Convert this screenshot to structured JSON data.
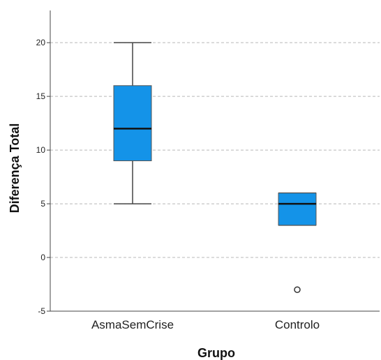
{
  "chart_data": {
    "type": "boxplot",
    "xlabel": "Grupo",
    "ylabel": "Diferença Total",
    "ylim": [
      -5,
      23
    ],
    "yticks": [
      -5,
      0,
      5,
      10,
      15,
      20
    ],
    "grid": true,
    "box_color": "#1493e8",
    "categories": [
      "AsmaSemCrise",
      "Controlo"
    ],
    "boxes": [
      {
        "category": "AsmaSemCrise",
        "whisker_low": 5,
        "q1": 9,
        "median": 12,
        "q3": 16,
        "whisker_high": 20,
        "outliers": []
      },
      {
        "category": "Controlo",
        "whisker_low": 3,
        "q1": 3,
        "median": 5,
        "q3": 6,
        "whisker_high": 6,
        "outliers": [
          -3
        ]
      }
    ]
  }
}
